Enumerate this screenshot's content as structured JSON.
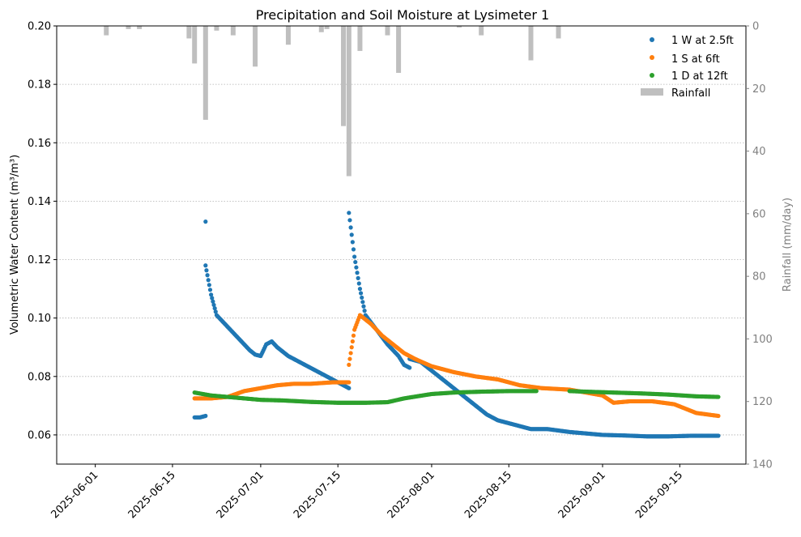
{
  "chart_data": {
    "type": "scatter",
    "title": "Precipitation and Soil Moisture at Lysimeter 1",
    "xlabel": "",
    "ylabel": "Volumetric Water Content (m³/m³)",
    "y2label": "Rainfall (mm/day)",
    "x_ticks": [
      "2025-06-01",
      "2025-06-15",
      "2025-07-01",
      "2025-07-15",
      "2025-08-01",
      "2025-08-15",
      "2025-09-01",
      "2025-09-15"
    ],
    "xlim": [
      "2025-05-25",
      "2025-09-27"
    ],
    "ylim": [
      0.05,
      0.2
    ],
    "y_ticks": [
      0.06,
      0.08,
      0.1,
      0.12,
      0.14,
      0.16,
      0.18,
      0.2
    ],
    "y2lim": [
      0,
      140
    ],
    "y2_inverted": true,
    "y2_ticks": [
      0,
      20,
      40,
      60,
      80,
      100,
      120,
      140
    ],
    "grid": "horizontal dotted",
    "legend_position": "top-right",
    "colors": {
      "w": "#1f77b4",
      "s": "#ff7f0e",
      "d": "#2ca02c",
      "rain": "#bfbfbf",
      "right_axis": "#808080"
    },
    "series": [
      {
        "name": "1 W at 2.5ft",
        "color": "#1f77b4",
        "points": [
          [
            "2025-06-19",
            0.066
          ],
          [
            "2025-06-20",
            0.066
          ],
          [
            "2025-06-21",
            0.0665
          ],
          [
            "2025-06-21",
            0.133
          ],
          [
            "2025-06-21",
            0.118
          ],
          [
            "2025-06-22",
            0.108
          ],
          [
            "2025-06-23",
            0.101
          ],
          [
            "2025-06-25",
            0.097
          ],
          [
            "2025-06-27",
            0.093
          ],
          [
            "2025-06-28",
            0.091
          ],
          [
            "2025-06-29",
            0.089
          ],
          [
            "2025-06-30",
            0.0875
          ],
          [
            "2025-07-01",
            0.087
          ],
          [
            "2025-07-02",
            0.091
          ],
          [
            "2025-07-03",
            0.092
          ],
          [
            "2025-07-04",
            0.09
          ],
          [
            "2025-07-06",
            0.087
          ],
          [
            "2025-07-08",
            0.085
          ],
          [
            "2025-07-10",
            0.083
          ],
          [
            "2025-07-12",
            0.081
          ],
          [
            "2025-07-14",
            0.079
          ],
          [
            "2025-07-16",
            0.077
          ],
          [
            "2025-07-17",
            0.076
          ],
          [
            "2025-07-17",
            0.136
          ],
          [
            "2025-07-18",
            0.121
          ],
          [
            "2025-07-19",
            0.11
          ],
          [
            "2025-07-20",
            0.101
          ],
          [
            "2025-07-22",
            0.096
          ],
          [
            "2025-07-24",
            0.091
          ],
          [
            "2025-07-26",
            0.087
          ],
          [
            "2025-07-27",
            0.084
          ],
          [
            "2025-07-28",
            0.083
          ],
          [
            "2025-07-28",
            0.086
          ],
          [
            "2025-07-30",
            0.085
          ],
          [
            "2025-08-01",
            0.082
          ],
          [
            "2025-08-03",
            0.079
          ],
          [
            "2025-08-05",
            0.076
          ],
          [
            "2025-08-07",
            0.073
          ],
          [
            "2025-08-09",
            0.07
          ],
          [
            "2025-08-11",
            0.067
          ],
          [
            "2025-08-13",
            0.065
          ],
          [
            "2025-08-15",
            0.064
          ],
          [
            "2025-08-17",
            0.063
          ],
          [
            "2025-08-19",
            0.062
          ],
          [
            "2025-08-22",
            0.062
          ],
          [
            "2025-08-26",
            0.061
          ],
          [
            "2025-08-29",
            0.0605
          ],
          [
            "2025-09-01",
            0.06
          ],
          [
            "2025-09-05",
            0.0598
          ],
          [
            "2025-09-09",
            0.0595
          ],
          [
            "2025-09-13",
            0.0595
          ],
          [
            "2025-09-17",
            0.0597
          ],
          [
            "2025-09-22",
            0.0597
          ]
        ]
      },
      {
        "name": "1 S at 6ft",
        "color": "#ff7f0e",
        "points": [
          [
            "2025-06-19",
            0.0725
          ],
          [
            "2025-06-22",
            0.0725
          ],
          [
            "2025-06-25",
            0.073
          ],
          [
            "2025-06-28",
            0.075
          ],
          [
            "2025-07-01",
            0.076
          ],
          [
            "2025-07-04",
            0.077
          ],
          [
            "2025-07-07",
            0.0775
          ],
          [
            "2025-07-10",
            0.0775
          ],
          [
            "2025-07-14",
            0.078
          ],
          [
            "2025-07-17",
            0.078
          ],
          [
            "2025-07-17",
            0.084
          ],
          [
            "2025-07-18",
            0.096
          ],
          [
            "2025-07-19",
            0.101
          ],
          [
            "2025-07-21",
            0.098
          ],
          [
            "2025-07-23",
            0.094
          ],
          [
            "2025-07-25",
            0.091
          ],
          [
            "2025-07-27",
            0.088
          ],
          [
            "2025-07-29",
            0.086
          ],
          [
            "2025-08-01",
            0.0835
          ],
          [
            "2025-08-05",
            0.0815
          ],
          [
            "2025-08-09",
            0.08
          ],
          [
            "2025-08-13",
            0.079
          ],
          [
            "2025-08-17",
            0.077
          ],
          [
            "2025-08-21",
            0.076
          ],
          [
            "2025-08-26",
            0.0755
          ],
          [
            "2025-08-29",
            0.0745
          ],
          [
            "2025-09-01",
            0.0735
          ],
          [
            "2025-09-03",
            0.071
          ],
          [
            "2025-09-06",
            0.0715
          ],
          [
            "2025-09-10",
            0.0715
          ],
          [
            "2025-09-14",
            0.0705
          ],
          [
            "2025-09-18",
            0.0675
          ],
          [
            "2025-09-22",
            0.0665
          ]
        ]
      },
      {
        "name": "1 D at 12ft",
        "color": "#2ca02c",
        "points": [
          [
            "2025-06-19",
            0.0745
          ],
          [
            "2025-06-22",
            0.0735
          ],
          [
            "2025-06-25",
            0.073
          ],
          [
            "2025-06-28",
            0.0725
          ],
          [
            "2025-07-01",
            0.072
          ],
          [
            "2025-07-05",
            0.0718
          ],
          [
            "2025-07-10",
            0.0713
          ],
          [
            "2025-07-15",
            0.071
          ],
          [
            "2025-07-20",
            0.071
          ],
          [
            "2025-07-24",
            0.0712
          ],
          [
            "2025-07-27",
            0.0725
          ],
          [
            "2025-08-01",
            0.074
          ],
          [
            "2025-08-05",
            0.0745
          ],
          [
            "2025-08-10",
            0.0748
          ],
          [
            "2025-08-15",
            0.075
          ],
          [
            "2025-08-20",
            0.075
          ],
          [
            "2025-08-26",
            0.075
          ],
          [
            "2025-08-29",
            0.0748
          ],
          [
            "2025-09-03",
            0.0745
          ],
          [
            "2025-09-08",
            0.0742
          ],
          [
            "2025-09-13",
            0.0738
          ],
          [
            "2025-09-18",
            0.0732
          ],
          [
            "2025-09-22",
            0.073
          ]
        ]
      }
    ],
    "rainfall": {
      "name": "Rainfall",
      "values": [
        [
          "2025-06-03",
          3
        ],
        [
          "2025-06-07",
          1
        ],
        [
          "2025-06-09",
          1
        ],
        [
          "2025-06-18",
          4
        ],
        [
          "2025-06-19",
          12
        ],
        [
          "2025-06-21",
          30
        ],
        [
          "2025-06-23",
          1.5
        ],
        [
          "2025-06-26",
          3
        ],
        [
          "2025-06-30",
          13
        ],
        [
          "2025-07-06",
          6
        ],
        [
          "2025-07-12",
          2
        ],
        [
          "2025-07-13",
          1
        ],
        [
          "2025-07-16",
          32
        ],
        [
          "2025-07-17",
          48
        ],
        [
          "2025-07-19",
          8
        ],
        [
          "2025-07-24",
          3
        ],
        [
          "2025-07-26",
          15
        ],
        [
          "2025-08-06",
          0.5
        ],
        [
          "2025-08-10",
          3
        ],
        [
          "2025-08-19",
          11
        ],
        [
          "2025-08-24",
          4
        ]
      ]
    }
  }
}
